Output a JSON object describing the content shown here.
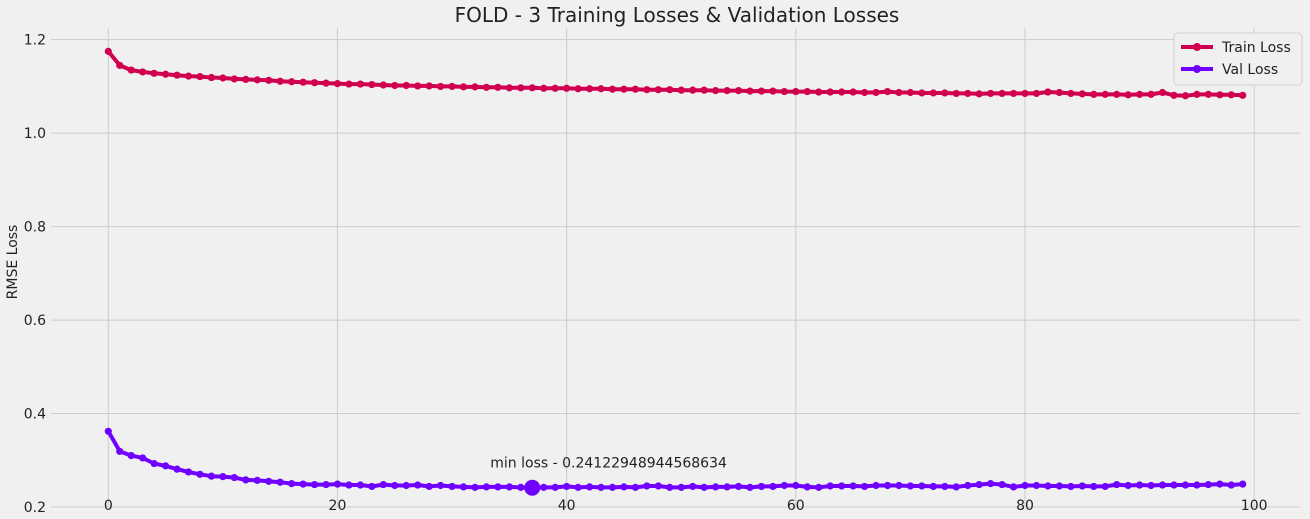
{
  "chart_data": {
    "type": "line",
    "title": "FOLD - 3 Training Losses & Validation Losses",
    "xlabel": "",
    "ylabel": "RMSE Loss",
    "xlim": [
      -5,
      104
    ],
    "ylim": [
      0.2,
      1.225
    ],
    "xticks": [
      0,
      20,
      40,
      60,
      80,
      100
    ],
    "yticks": [
      0.2,
      0.4,
      0.6,
      0.8,
      1.0,
      1.2
    ],
    "grid": true,
    "legend_position": "top-right",
    "series": [
      {
        "name": "Train Loss",
        "color": "#d1004f",
        "values": [
          1.175,
          1.145,
          1.135,
          1.131,
          1.128,
          1.126,
          1.124,
          1.122,
          1.121,
          1.119,
          1.118,
          1.116,
          1.115,
          1.114,
          1.113,
          1.111,
          1.11,
          1.109,
          1.108,
          1.107,
          1.106,
          1.105,
          1.105,
          1.104,
          1.103,
          1.102,
          1.102,
          1.101,
          1.101,
          1.1,
          1.1,
          1.099,
          1.099,
          1.098,
          1.098,
          1.097,
          1.097,
          1.097,
          1.096,
          1.096,
          1.096,
          1.095,
          1.095,
          1.095,
          1.094,
          1.094,
          1.094,
          1.093,
          1.093,
          1.093,
          1.092,
          1.092,
          1.092,
          1.091,
          1.091,
          1.091,
          1.09,
          1.09,
          1.09,
          1.089,
          1.089,
          1.089,
          1.088,
          1.088,
          1.088,
          1.088,
          1.087,
          1.087,
          1.089,
          1.087,
          1.087,
          1.086,
          1.086,
          1.086,
          1.085,
          1.085,
          1.084,
          1.085,
          1.085,
          1.085,
          1.085,
          1.085,
          1.088,
          1.087,
          1.085,
          1.084,
          1.083,
          1.083,
          1.083,
          1.082,
          1.083,
          1.083,
          1.087,
          1.081,
          1.08,
          1.083,
          1.083,
          1.082,
          1.082,
          1.081
        ]
      },
      {
        "name": "Val Loss",
        "color": "#7000ff",
        "values": [
          0.362,
          0.319,
          0.31,
          0.305,
          0.293,
          0.288,
          0.281,
          0.275,
          0.27,
          0.266,
          0.265,
          0.263,
          0.258,
          0.257,
          0.255,
          0.253,
          0.25,
          0.249,
          0.248,
          0.248,
          0.249,
          0.247,
          0.247,
          0.244,
          0.248,
          0.246,
          0.246,
          0.247,
          0.244,
          0.246,
          0.244,
          0.243,
          0.242,
          0.243,
          0.243,
          0.243,
          0.242,
          0.241,
          0.242,
          0.242,
          0.244,
          0.242,
          0.243,
          0.242,
          0.242,
          0.243,
          0.242,
          0.245,
          0.245,
          0.242,
          0.242,
          0.244,
          0.242,
          0.243,
          0.243,
          0.244,
          0.242,
          0.244,
          0.244,
          0.246,
          0.246,
          0.243,
          0.242,
          0.245,
          0.245,
          0.245,
          0.244,
          0.246,
          0.246,
          0.246,
          0.245,
          0.245,
          0.244,
          0.244,
          0.243,
          0.246,
          0.248,
          0.25,
          0.248,
          0.243,
          0.246,
          0.246,
          0.245,
          0.245,
          0.244,
          0.245,
          0.244,
          0.244,
          0.248,
          0.246,
          0.247,
          0.246,
          0.247,
          0.247,
          0.247,
          0.247,
          0.248,
          0.249,
          0.247,
          0.249
        ]
      }
    ],
    "min_marker": {
      "x": 37,
      "y": 0.24122948944568634,
      "color": "#7000ff"
    },
    "annotations": [
      {
        "text": "min loss - 0.24122948944568634",
        "x": 37,
        "y": 0.295
      }
    ]
  }
}
